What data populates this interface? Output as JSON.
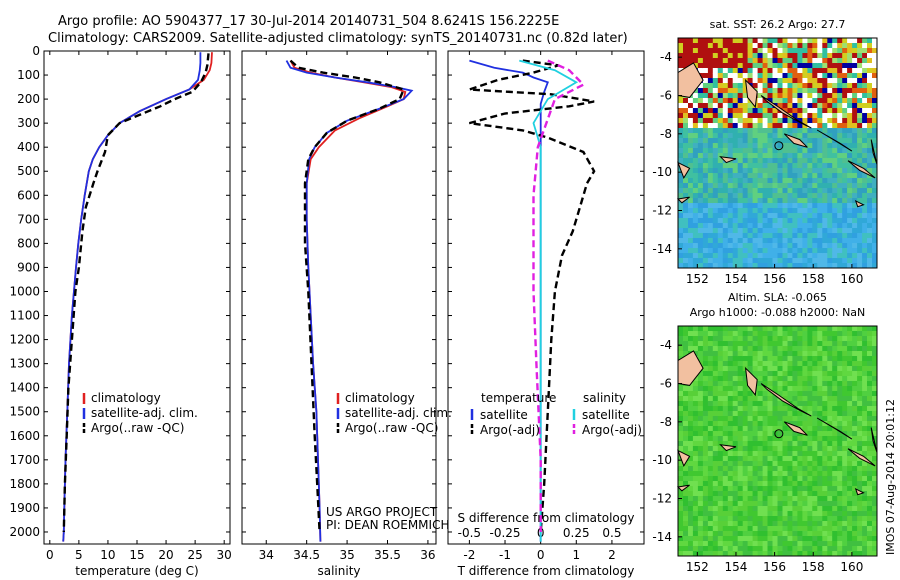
{
  "header": {
    "line1": "Argo profile: AO 5904377_17 30-Jul-2014 20140731_504 8.6241S 156.2225E",
    "line2": "Climatology: CARS2009. Satellite-adjusted climatology: synTS_20140731.nc (0.82d later)"
  },
  "colors": {
    "clim": "#e02020",
    "sat": "#2030e0",
    "argo": "#000000",
    "sal_sat": "#20d0e0",
    "sal_argo": "#e020e0",
    "land": "#f2c0a0"
  },
  "chart_data": [
    {
      "id": "temperature",
      "type": "line",
      "xlabel": "temperature (deg C)",
      "xlim": [
        -1,
        31
      ],
      "ylim": [
        2050,
        0
      ],
      "xticks": [
        0,
        5,
        10,
        15,
        20,
        25,
        30
      ],
      "yticks": [
        0,
        100,
        200,
        300,
        400,
        500,
        600,
        700,
        800,
        900,
        1000,
        1100,
        1200,
        1300,
        1400,
        1500,
        1600,
        1700,
        1800,
        1900,
        2000
      ],
      "legend": [
        "climatology",
        "satellite-adj. clim.",
        "Argo(..raw -QC)"
      ],
      "series": [
        {
          "name": "climatology",
          "key": "clim",
          "style": "solid",
          "x": [
            27.9,
            27.8,
            27.5,
            26.5,
            24.0,
            20.0,
            15.5,
            12.0,
            10.0,
            8.5,
            7.4,
            6.7,
            6.0,
            5.4,
            4.9,
            4.5,
            3.8,
            3.3,
            3.0,
            2.7,
            2.5,
            2.4,
            2.3
          ],
          "y": [
            5,
            50,
            80,
            120,
            160,
            200,
            250,
            300,
            350,
            400,
            450,
            500,
            600,
            700,
            800,
            900,
            1100,
            1300,
            1500,
            1700,
            1900,
            2000,
            2040
          ]
        },
        {
          "name": "satellite-adj. clim.",
          "key": "sat",
          "style": "solid",
          "x": [
            25.9,
            25.9,
            25.8,
            25.5,
            24.0,
            20.0,
            15.5,
            12.0,
            10.0,
            8.5,
            7.4,
            6.7,
            6.0,
            5.4,
            4.9,
            4.5,
            3.8,
            3.3,
            3.0,
            2.7,
            2.5,
            2.4,
            2.3
          ],
          "y": [
            5,
            50,
            80,
            120,
            160,
            200,
            250,
            300,
            350,
            400,
            450,
            500,
            600,
            700,
            800,
            900,
            1100,
            1300,
            1500,
            1700,
            1900,
            2000,
            2040
          ]
        },
        {
          "name": "Argo(..raw -QC)",
          "key": "argo",
          "style": "dash",
          "x": [
            27.3,
            27.1,
            26.8,
            26.0,
            24.5,
            21.5,
            19.0,
            16.0,
            12.0,
            10.0,
            9.5,
            8.2,
            7.5,
            6.2,
            5.6,
            5.0,
            4.4,
            3.8,
            3.2,
            2.9,
            2.6,
            2.4
          ],
          "y": [
            10,
            60,
            90,
            130,
            170,
            200,
            230,
            260,
            300,
            350,
            420,
            500,
            550,
            650,
            750,
            900,
            1000,
            1200,
            1400,
            1600,
            1800,
            2000
          ]
        }
      ]
    },
    {
      "id": "salinity",
      "type": "line",
      "xlabel": "salinity",
      "xlim": [
        33.7,
        36.1
      ],
      "ylim": [
        2050,
        0
      ],
      "xticks": [
        34,
        34.5,
        35,
        35.5,
        36
      ],
      "xticklabels": [
        "34",
        "34.5",
        "35",
        "35.5",
        "36"
      ],
      "legend": [
        "climatology",
        "satellite-adj. clim.",
        "Argo(..raw -QC)"
      ],
      "annotation": [
        "US ARGO PROJECT",
        "PI: DEAN ROEMMICH"
      ],
      "series": [
        {
          "name": "climatology",
          "key": "clim",
          "style": "solid",
          "x": [
            34.3,
            34.35,
            34.55,
            34.85,
            35.2,
            35.55,
            35.72,
            35.7,
            35.5,
            35.15,
            34.85,
            34.65,
            34.55,
            34.5,
            34.5,
            34.52,
            34.55,
            34.58,
            34.62,
            34.64,
            34.66,
            34.67
          ],
          "y": [
            40,
            70,
            90,
            110,
            130,
            150,
            170,
            200,
            230,
            280,
            330,
            400,
            450,
            550,
            700,
            900,
            1100,
            1300,
            1500,
            1700,
            1900,
            2040
          ]
        },
        {
          "name": "satellite-adj. clim.",
          "key": "sat",
          "style": "solid",
          "x": [
            34.25,
            34.3,
            34.5,
            34.85,
            35.25,
            35.6,
            35.8,
            35.7,
            35.4,
            35.0,
            34.75,
            34.6,
            34.53,
            34.5,
            34.5,
            34.52,
            34.55,
            34.58,
            34.62,
            34.64,
            34.66,
            34.67
          ],
          "y": [
            40,
            70,
            90,
            110,
            130,
            150,
            165,
            200,
            240,
            290,
            340,
            400,
            450,
            550,
            700,
            900,
            1100,
            1300,
            1500,
            1700,
            1900,
            2040
          ]
        },
        {
          "name": "Argo(..raw -QC)",
          "key": "argo",
          "style": "dash",
          "x": [
            34.3,
            34.4,
            34.7,
            35.1,
            35.4,
            35.7,
            35.65,
            35.4,
            35.0,
            34.75,
            34.6,
            34.52,
            34.48,
            34.48,
            34.52,
            34.56,
            34.6,
            34.63,
            34.66
          ],
          "y": [
            40,
            70,
            90,
            110,
            130,
            160,
            200,
            240,
            290,
            340,
            400,
            450,
            550,
            800,
            1000,
            1300,
            1600,
            1800,
            2000
          ]
        }
      ]
    },
    {
      "id": "difference",
      "type": "line",
      "xlabel": "T difference from climatology",
      "xlabel_top": "S difference from climatology",
      "xlim": [
        -2.6,
        2.9
      ],
      "ylim": [
        2050,
        0
      ],
      "xticks": [
        -2,
        -1,
        0,
        1,
        2
      ],
      "sticks": [
        -0.5,
        -0.25,
        0,
        0.25,
        0.5
      ],
      "sticklabels": [
        "-0.5",
        "-0.25",
        "0",
        "0.25",
        "0.5"
      ],
      "legend_t_title": "temperature",
      "legend_s_title": "salinity",
      "legend": [
        "satellite",
        "Argo(-adj)",
        "satellite",
        "Argo(-adj)"
      ],
      "series": [
        {
          "name": "satellite",
          "key": "sat",
          "style": "solid",
          "x": [
            -2.0,
            -1.3,
            -0.5,
            -0.2,
            0.2,
            0.1,
            0.0,
            0.0,
            0.0,
            0.0,
            0.0,
            0.0
          ],
          "y": [
            40,
            70,
            90,
            110,
            130,
            170,
            220,
            300,
            500,
            1000,
            1500,
            2040
          ]
        },
        {
          "name": "Argo(-adj)",
          "key": "argo",
          "style": "dash",
          "x": [
            -0.5,
            0.5,
            -0.2,
            -1.2,
            -2.0,
            0.3,
            1.5,
            0.8,
            -1.0,
            -2.0,
            -0.5,
            0.2,
            1.2,
            1.5,
            1.3,
            1.1,
            0.9,
            0.6,
            0.4,
            0.3,
            0.2,
            0.1,
            0.0
          ],
          "y": [
            40,
            60,
            90,
            120,
            160,
            180,
            210,
            230,
            260,
            300,
            330,
            360,
            420,
            500,
            550,
            650,
            750,
            850,
            1000,
            1200,
            1500,
            1800,
            2000
          ]
        },
        {
          "name": "satellite",
          "key": "sal_sat",
          "style": "solid",
          "x": [
            -0.15,
            0.1,
            0.25,
            0.05,
            -0.05,
            0.0,
            0.0,
            0.0,
            0.0,
            0.0
          ],
          "y": [
            40,
            80,
            130,
            200,
            300,
            400,
            600,
            1000,
            1500,
            2040
          ]
        },
        {
          "name": "Argo(-adj)",
          "key": "sal_argo",
          "style": "dash",
          "x": [
            0.05,
            0.2,
            0.3,
            0.1,
            -0.02,
            -0.05,
            -0.05,
            -0.03,
            0.0,
            0.0
          ],
          "y": [
            40,
            80,
            140,
            200,
            400,
            600,
            1000,
            1300,
            1700,
            2000
          ]
        }
      ]
    },
    {
      "id": "sst_map",
      "type": "heatmap",
      "title": "sat. SST: 26.2 Argo: 27.7",
      "xlim": [
        151,
        161.3
      ],
      "ylim": [
        -15,
        -3
      ],
      "xticks": [
        152,
        154,
        156,
        158,
        160
      ],
      "yticks": [
        -4,
        -6,
        -8,
        -10,
        -12,
        -14
      ],
      "marker": {
        "lon": 156.22,
        "lat": -8.62
      }
    },
    {
      "id": "sla_map",
      "type": "heatmap",
      "title": "Altim. SLA: -0.065",
      "subtitle": "Argo h1000: -0.088 h2000: NaN",
      "xlim": [
        151,
        161.3
      ],
      "ylim": [
        -15,
        -3
      ],
      "xticks": [
        152,
        154,
        156,
        158,
        160
      ],
      "yticks": [
        -4,
        -6,
        -8,
        -10,
        -12,
        -14
      ],
      "marker": {
        "lon": 156.22,
        "lat": -8.62
      }
    }
  ],
  "credit": "IMOS 07-Aug-2014 20:01:12"
}
